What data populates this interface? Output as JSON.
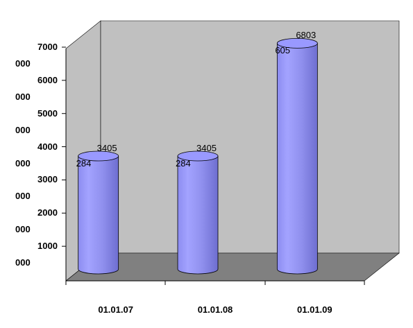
{
  "chart_data": {
    "type": "bar",
    "categories": [
      "01.01.07",
      "01.01.08",
      "01.01.09"
    ],
    "values": [
      3405284,
      3405284,
      6803605
    ],
    "value_labels": [
      "3405 284",
      "3405 284",
      "6803 605"
    ],
    "color": "#9999ff",
    "ylim": [
      0,
      7000000
    ],
    "yticks": [
      {
        "value": 1000000,
        "label": "1000 000"
      },
      {
        "value": 2000000,
        "label": "2000 000"
      },
      {
        "value": 3000000,
        "label": "3000 000"
      },
      {
        "value": 4000000,
        "label": "4000 000"
      },
      {
        "value": 5000000,
        "label": "5000 000"
      },
      {
        "value": 6000000,
        "label": "6000 000"
      },
      {
        "value": 7000000,
        "label": "7000 000"
      }
    ]
  }
}
